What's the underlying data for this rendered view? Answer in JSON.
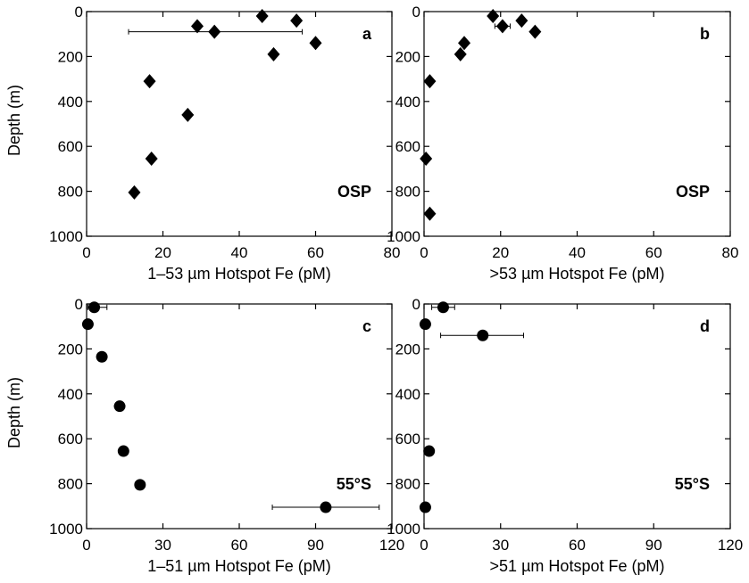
{
  "chart_data": [
    {
      "type": "scatter",
      "panel": "a",
      "site": "OSP",
      "xlabel": "1–53 µm Hotspot Fe (pM)",
      "ylabel": "Depth (m)",
      "xlim": [
        0,
        80
      ],
      "ylim": [
        1000,
        0
      ],
      "y_inverted": true,
      "xticks": [
        0,
        20,
        40,
        60,
        80
      ],
      "yticks": [
        0,
        200,
        400,
        600,
        800,
        1000
      ],
      "marker": "diamond",
      "points": [
        {
          "x": 46,
          "y": 20
        },
        {
          "x": 55,
          "y": 40
        },
        {
          "x": 29,
          "y": 65
        },
        {
          "x": 33.5,
          "y": 90,
          "xerr": [
            11,
            56.5
          ]
        },
        {
          "x": 60,
          "y": 140
        },
        {
          "x": 49,
          "y": 190
        },
        {
          "x": 16.5,
          "y": 310
        },
        {
          "x": 26.5,
          "y": 460
        },
        {
          "x": 17,
          "y": 655
        },
        {
          "x": 12.5,
          "y": 805
        }
      ]
    },
    {
      "type": "scatter",
      "panel": "b",
      "site": "OSP",
      "xlabel": ">53 µm Hotspot Fe (pM)",
      "ylabel": "",
      "xlim": [
        0,
        80
      ],
      "ylim": [
        1000,
        0
      ],
      "y_inverted": true,
      "xticks": [
        0,
        20,
        40,
        60,
        80
      ],
      "yticks": [
        0,
        200,
        400,
        600,
        800,
        1000
      ],
      "marker": "diamond",
      "points": [
        {
          "x": 18,
          "y": 20
        },
        {
          "x": 25.5,
          "y": 40
        },
        {
          "x": 20.5,
          "y": 65,
          "xerr": [
            18.5,
            22.5
          ]
        },
        {
          "x": 29,
          "y": 90
        },
        {
          "x": 10.5,
          "y": 140
        },
        {
          "x": 9.5,
          "y": 190
        },
        {
          "x": 1.5,
          "y": 310
        },
        {
          "x": 0.5,
          "y": 655
        },
        {
          "x": 1.5,
          "y": 900
        }
      ]
    },
    {
      "type": "scatter",
      "panel": "c",
      "site": "55°S",
      "xlabel": "1–51 µm Hotspot Fe (pM)",
      "ylabel": "Depth (m)",
      "xlim": [
        0,
        120
      ],
      "ylim": [
        1000,
        0
      ],
      "y_inverted": true,
      "xticks": [
        0,
        30,
        60,
        90,
        120
      ],
      "yticks": [
        0,
        200,
        400,
        600,
        800,
        1000
      ],
      "marker": "circle",
      "points": [
        {
          "x": 3,
          "y": 15,
          "xerr": [
            0.5,
            8
          ]
        },
        {
          "x": 0.5,
          "y": 90
        },
        {
          "x": 6,
          "y": 235
        },
        {
          "x": 13,
          "y": 455
        },
        {
          "x": 14.5,
          "y": 655
        },
        {
          "x": 21,
          "y": 805
        },
        {
          "x": 94,
          "y": 905,
          "xerr": [
            73,
            115
          ]
        }
      ]
    },
    {
      "type": "scatter",
      "panel": "d",
      "site": "55°S",
      "xlabel": ">51 µm Hotspot Fe (pM)",
      "ylabel": "",
      "xlim": [
        0,
        120
      ],
      "ylim": [
        1000,
        0
      ],
      "y_inverted": true,
      "xticks": [
        0,
        30,
        60,
        90,
        120
      ],
      "yticks": [
        0,
        200,
        400,
        600,
        800,
        1000
      ],
      "marker": "circle",
      "points": [
        {
          "x": 7.5,
          "y": 15,
          "xerr": [
            3,
            12
          ]
        },
        {
          "x": 0.5,
          "y": 90
        },
        {
          "x": 23,
          "y": 140,
          "xerr": [
            6.5,
            39
          ]
        },
        {
          "x": 2,
          "y": 655
        },
        {
          "x": 0.5,
          "y": 905
        }
      ]
    }
  ]
}
